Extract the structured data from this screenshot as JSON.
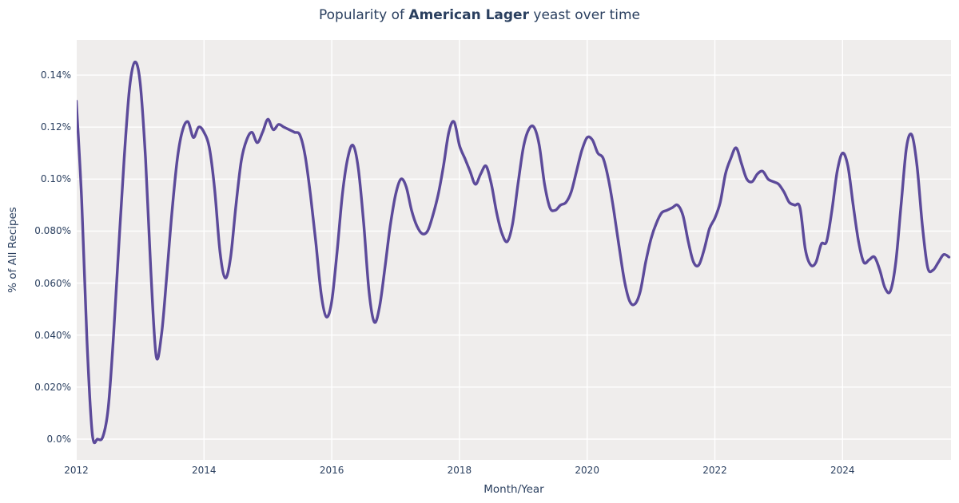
{
  "title": {
    "prefix": "Popularity of ",
    "emphasis": "American Lager",
    "suffix": " yeast over time"
  },
  "chart_data": {
    "type": "line",
    "title": "Popularity of American Lager yeast over time",
    "xlabel": "Month/Year",
    "ylabel": "% of All Recipes",
    "legend": "none",
    "grid": true,
    "plot_bg_color": "#efedec",
    "paper_bg_color": "#ffffff",
    "grid_color": "#ffffff",
    "text_color": "#2a3f5f",
    "line_color": "#5c4a9a",
    "line_width": 3.4,
    "line_shape": "spline",
    "x_tick_labels": [
      "2012",
      "2014",
      "2016",
      "2018",
      "2020",
      "2022",
      "2024"
    ],
    "x_tick_years": [
      2012,
      2014,
      2016,
      2018,
      2020,
      2022,
      2024
    ],
    "y_tick_labels": [
      "0.0%",
      "0.020%",
      "0.040%",
      "0.060%",
      "0.080%",
      "0.10%",
      "0.12%",
      "0.14%"
    ],
    "y_tick_values": [
      0.0,
      0.02,
      0.04,
      0.06,
      0.08,
      0.1,
      0.12,
      0.14
    ],
    "x_range_years": [
      2012.0,
      2025.75
    ],
    "y_range_pct": [
      -0.008,
      0.1535
    ],
    "series": [
      {
        "name": "American Lager",
        "unit": "% of all recipes",
        "start_month": "2012-01",
        "end_month": "2025-09",
        "cadence": "monthly",
        "values_pct": [
          0.13,
          0.092,
          0.038,
          0.002,
          0.0,
          0.001,
          0.012,
          0.04,
          0.075,
          0.108,
          0.135,
          0.145,
          0.137,
          0.108,
          0.065,
          0.032,
          0.04,
          0.063,
          0.088,
          0.108,
          0.119,
          0.122,
          0.116,
          0.12,
          0.118,
          0.112,
          0.096,
          0.072,
          0.062,
          0.07,
          0.09,
          0.107,
          0.115,
          0.118,
          0.114,
          0.118,
          0.123,
          0.119,
          0.121,
          0.12,
          0.119,
          0.118,
          0.117,
          0.109,
          0.094,
          0.076,
          0.056,
          0.047,
          0.053,
          0.072,
          0.094,
          0.108,
          0.113,
          0.104,
          0.083,
          0.057,
          0.045,
          0.051,
          0.066,
          0.082,
          0.094,
          0.1,
          0.097,
          0.088,
          0.082,
          0.079,
          0.08,
          0.086,
          0.094,
          0.105,
          0.118,
          0.122,
          0.113,
          0.108,
          0.103,
          0.098,
          0.102,
          0.105,
          0.098,
          0.087,
          0.079,
          0.076,
          0.083,
          0.098,
          0.112,
          0.119,
          0.12,
          0.113,
          0.098,
          0.089,
          0.088,
          0.09,
          0.091,
          0.095,
          0.103,
          0.111,
          0.116,
          0.115,
          0.11,
          0.108,
          0.1,
          0.088,
          0.074,
          0.061,
          0.053,
          0.052,
          0.057,
          0.068,
          0.077,
          0.083,
          0.087,
          0.088,
          0.089,
          0.09,
          0.086,
          0.076,
          0.068,
          0.067,
          0.073,
          0.081,
          0.085,
          0.091,
          0.102,
          0.108,
          0.112,
          0.106,
          0.1,
          0.099,
          0.102,
          0.103,
          0.1,
          0.099,
          0.098,
          0.095,
          0.091,
          0.09,
          0.089,
          0.073,
          0.067,
          0.068,
          0.075,
          0.076,
          0.088,
          0.103,
          0.11,
          0.105,
          0.09,
          0.076,
          0.068,
          0.069,
          0.07,
          0.065,
          0.058,
          0.057,
          0.068,
          0.09,
          0.112,
          0.117,
          0.105,
          0.082,
          0.066,
          0.065,
          0.068,
          0.071,
          0.07
        ]
      }
    ]
  }
}
